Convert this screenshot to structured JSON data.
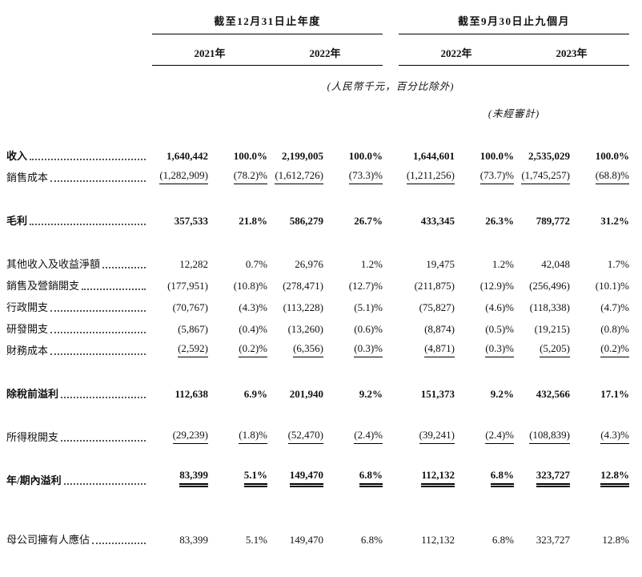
{
  "table": {
    "col_groups": [
      {
        "label": "截至12月31日止年度",
        "years": [
          "2021年",
          "2022年"
        ]
      },
      {
        "label": "截至9月30日止九個月",
        "years": [
          "2022年",
          "2023年"
        ]
      }
    ],
    "notes": {
      "currency": "(人民幣千元，百分比除外)",
      "unaudited": "(未經審計)"
    },
    "rows": [
      {
        "label": "收入",
        "bold": true,
        "values": [
          "1,640,442",
          "100.0%",
          "2,199,005",
          "100.0%",
          "1,644,601",
          "100.0%",
          "2,535,029",
          "100.0%"
        ]
      },
      {
        "label": "銷售成本",
        "underline": "single",
        "values": [
          "(1,282,909)",
          "(78.2)%",
          "(1,612,726)",
          "(73.3)%",
          "(1,211,256)",
          "(73.7)%",
          "(1,745,257)",
          "(68.8)%"
        ]
      },
      {
        "label": "毛利",
        "bold": true,
        "gap": "normal",
        "values": [
          "357,533",
          "21.8%",
          "586,279",
          "26.7%",
          "433,345",
          "26.3%",
          "789,772",
          "31.2%"
        ]
      },
      {
        "label": "其他收入及收益淨額",
        "gap": "normal",
        "values": [
          "12,282",
          "0.7%",
          "26,976",
          "1.2%",
          "19,475",
          "1.2%",
          "42,048",
          "1.7%"
        ]
      },
      {
        "label": "銷售及營銷開支",
        "values": [
          "(177,951)",
          "(10.8)%",
          "(278,471)",
          "(12.7)%",
          "(211,875)",
          "(12.9)%",
          "(256,496)",
          "(10.1)%"
        ]
      },
      {
        "label": "行政開支",
        "values": [
          "(70,767)",
          "(4.3)%",
          "(113,228)",
          "(5.1)%",
          "(75,827)",
          "(4.6)%",
          "(118,338)",
          "(4.7)%"
        ]
      },
      {
        "label": "研發開支",
        "values": [
          "(5,867)",
          "(0.4)%",
          "(13,260)",
          "(0.6)%",
          "(8,874)",
          "(0.5)%",
          "(19,215)",
          "(0.8)%"
        ]
      },
      {
        "label": "財務成本",
        "underline": "single",
        "values": [
          "(2,592)",
          "(0.2)%",
          "(6,356)",
          "(0.3)%",
          "(4,871)",
          "(0.3)%",
          "(5,205)",
          "(0.2)%"
        ]
      },
      {
        "label": "除稅前溢利",
        "bold": true,
        "gap": "normal",
        "values": [
          "112,638",
          "6.9%",
          "201,940",
          "9.2%",
          "151,373",
          "9.2%",
          "432,566",
          "17.1%"
        ]
      },
      {
        "label": "所得稅開支",
        "underline": "single",
        "gap": "normal",
        "values": [
          "(29,239)",
          "(1.8)%",
          "(52,470)",
          "(2.4)%",
          "(39,241)",
          "(2.4)%",
          "(108,839)",
          "(4.3)%"
        ]
      },
      {
        "label": "年/期內溢利",
        "bold": true,
        "underline": "double",
        "gap": "normal",
        "values": [
          "83,399",
          "5.1%",
          "149,470",
          "6.8%",
          "112,132",
          "6.8%",
          "323,727",
          "12.8%"
        ]
      },
      {
        "label": "母公司擁有人應佔",
        "gap": "large",
        "values": [
          "83,399",
          "5.1%",
          "149,470",
          "6.8%",
          "112,132",
          "6.8%",
          "323,727",
          "12.8%"
        ]
      }
    ]
  }
}
